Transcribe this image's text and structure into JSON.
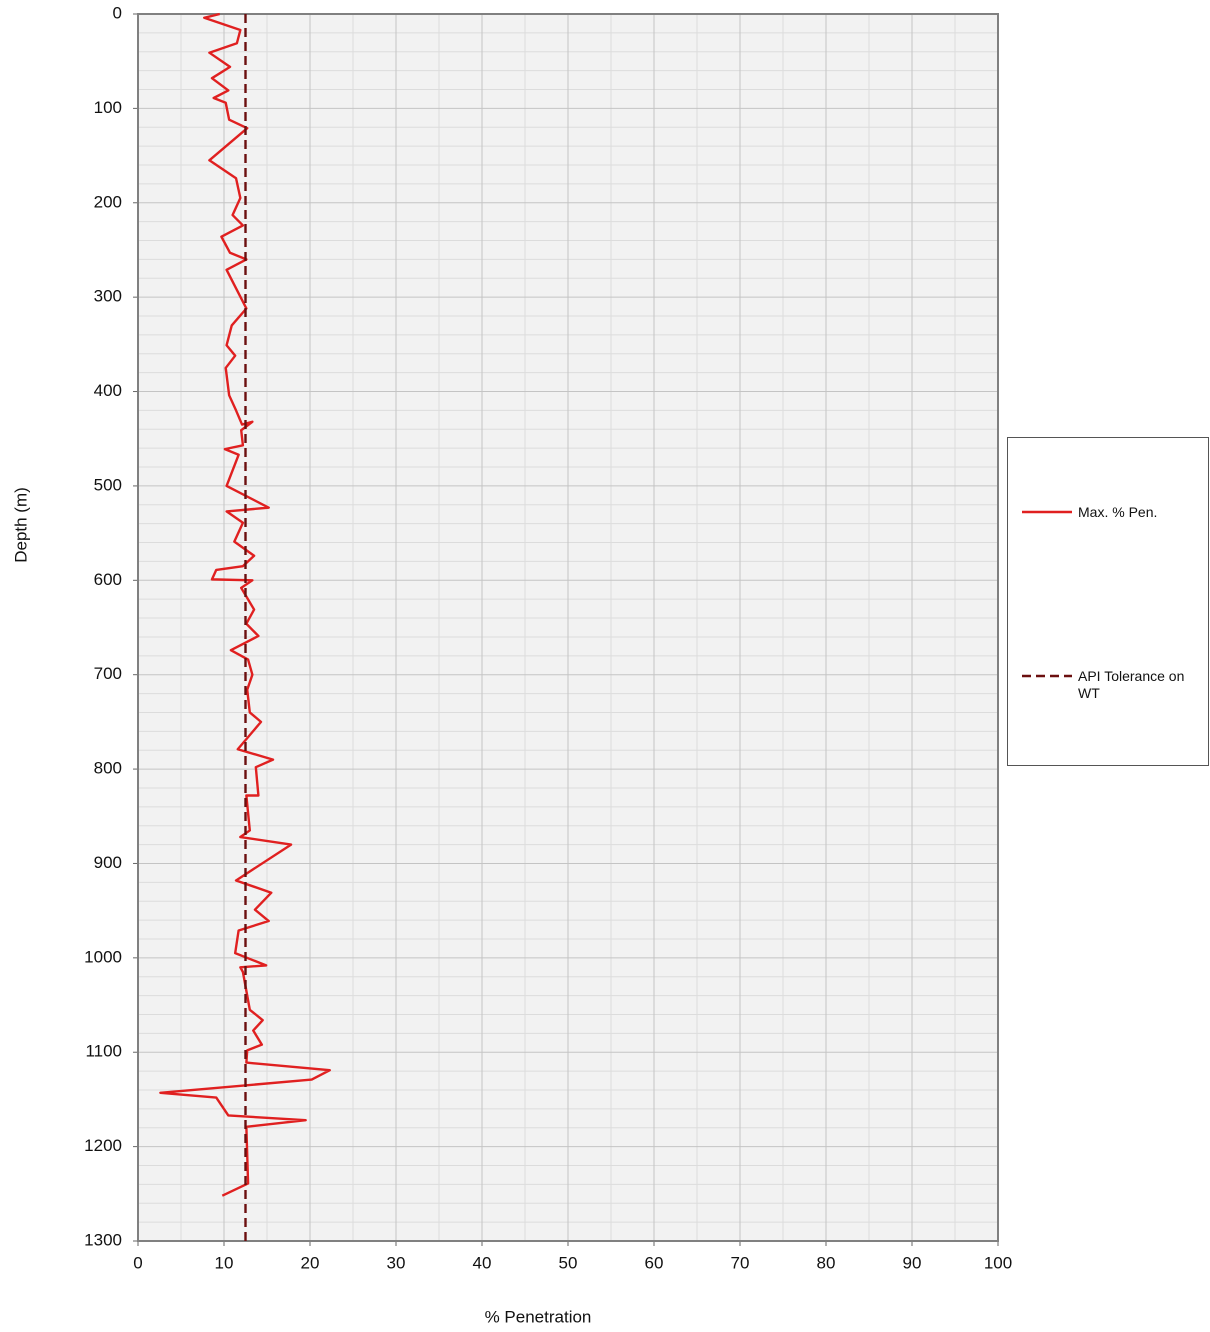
{
  "chart_data": {
    "type": "line",
    "xlabel": "% Penetration",
    "ylabel": "Depth (m)",
    "xlim": [
      0,
      100
    ],
    "xticks": [
      0,
      10,
      20,
      30,
      40,
      50,
      60,
      70,
      80,
      90,
      100
    ],
    "ylim": [
      1300,
      0
    ],
    "yticks": [
      0,
      100,
      200,
      300,
      400,
      500,
      600,
      700,
      800,
      900,
      1000,
      1100,
      1200,
      1300
    ],
    "grid": true,
    "legend": "right",
    "series": [
      {
        "name": "Max. % Pen.",
        "color": "#e02020",
        "dashed": false,
        "x": [
          9.5,
          7.7,
          11.9,
          11.5,
          8.3,
          10.7,
          8.6,
          10.5,
          8.8,
          10.2,
          10.6,
          12.7,
          8.3,
          11.4,
          11.9,
          11.0,
          12.2,
          9.7,
          10.7,
          12.6,
          10.3,
          12.6,
          10.9,
          10.3,
          11.3,
          10.2,
          10.6,
          11.4,
          12.1,
          13.3,
          12.0,
          12.2,
          10.1,
          11.7,
          10.3,
          15.2,
          10.3,
          12.2,
          11.2,
          13.5,
          12.2,
          9.1,
          8.6,
          13.3,
          12.0,
          13.5,
          12.6,
          14.0,
          10.8,
          12.8,
          13.3,
          12.7,
          13.0,
          14.3,
          11.6,
          15.7,
          13.7,
          14.0,
          12.6,
          13.0,
          11.9,
          17.8,
          11.4,
          15.5,
          13.6,
          15.2,
          11.7,
          11.3,
          14.9,
          11.9,
          12.2,
          13.0,
          14.5,
          13.4,
          14.4,
          12.7,
          12.6,
          22.3,
          20.2,
          2.6,
          9.1,
          10.5,
          19.5,
          12.6,
          12.8,
          9.8
        ],
        "y": [
          0,
          4,
          17,
          31,
          41,
          56,
          68,
          81,
          89,
          94,
          112,
          121,
          155,
          174,
          195,
          213,
          224,
          236,
          253,
          260,
          271,
          312,
          330,
          351,
          362,
          375,
          404,
          420,
          435,
          432,
          441,
          457,
          461,
          467,
          500,
          523,
          527,
          539,
          559,
          574,
          585,
          589,
          599,
          600,
          608,
          631,
          646,
          659,
          674,
          684,
          700,
          716,
          740,
          750,
          779,
          790,
          798,
          828,
          828,
          865,
          872,
          880,
          918,
          931,
          949,
          961,
          971,
          995,
          1008,
          1010,
          1015,
          1055,
          1066,
          1077,
          1092,
          1098,
          1111,
          1119,
          1129,
          1143,
          1148,
          1167,
          1172,
          1179,
          1239,
          1252
        ]
      },
      {
        "name": "API Tolerance on WT",
        "color": "#6b0f0f",
        "dashed": true,
        "x": [
          12.5,
          12.5
        ],
        "y": [
          0,
          1300
        ]
      }
    ]
  }
}
